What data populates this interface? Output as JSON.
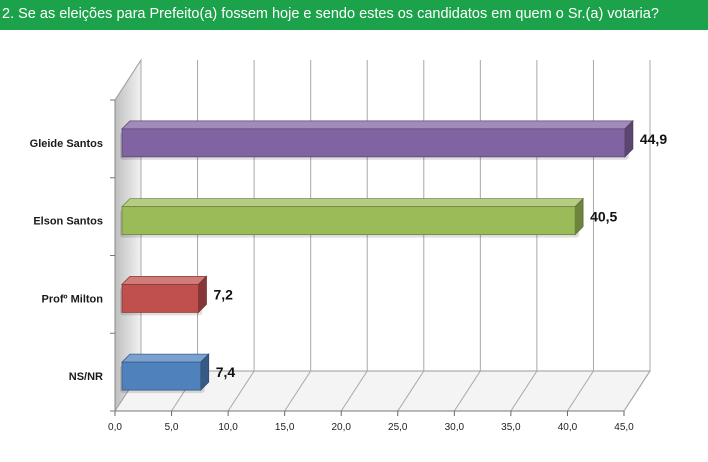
{
  "title": "2. Se as eleições para Prefeito(a) fossem hoje e sendo estes os candidatos em quem o Sr.(a) votaria?",
  "chart_data": {
    "type": "bar",
    "orientation": "horizontal",
    "categories": [
      "Gleide Santos",
      "Elson Santos",
      "Profº Milton",
      "NS/NR"
    ],
    "values": [
      44.9,
      40.5,
      7.2,
      7.4
    ],
    "value_labels": [
      "44,9",
      "40,5",
      "7,2",
      "7,4"
    ],
    "colors": [
      "#8064a2",
      "#9bbb59",
      "#c0504d",
      "#4f81bd"
    ],
    "xlim": [
      0,
      45
    ],
    "x_ticks": [
      "0,0",
      "5,0",
      "10,0",
      "15,0",
      "20,0",
      "25,0",
      "30,0",
      "35,0",
      "40,0",
      "45,0"
    ],
    "grid": true,
    "xlabel": "",
    "ylabel": "",
    "title_bar_color": "#1ca24a"
  }
}
